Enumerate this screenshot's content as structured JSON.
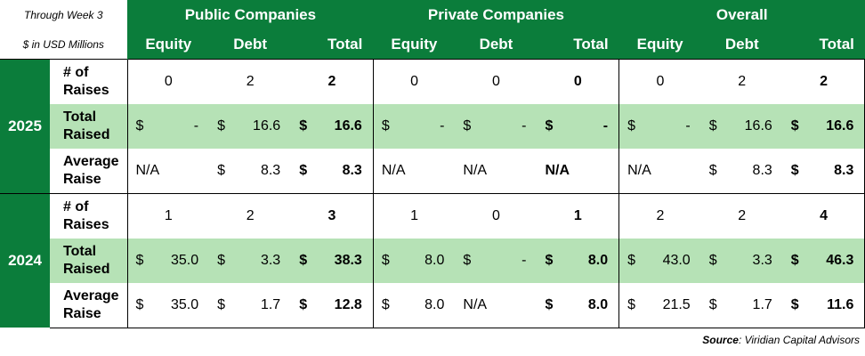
{
  "header": {
    "note_period": "Through Week 3",
    "note_units": "$ in USD Millions",
    "groups": [
      "Public Companies",
      "Private Companies",
      "Overall"
    ],
    "columns": [
      "Equity",
      "Debt",
      "Total",
      "Equity",
      "Debt",
      "Total",
      "Equity",
      "Debt",
      "Total"
    ]
  },
  "sections": [
    {
      "year": "2025",
      "rows": [
        {
          "label": "# of Raises",
          "cells": [
            [
              "0"
            ],
            [
              "2"
            ],
            [
              "2"
            ],
            [
              "0"
            ],
            [
              "0"
            ],
            [
              "0"
            ],
            [
              "0"
            ],
            [
              "2"
            ],
            [
              "2"
            ]
          ]
        },
        {
          "label": "Total Raised",
          "cells": [
            [
              "$",
              "-"
            ],
            [
              "$",
              "16.6"
            ],
            [
              "$",
              "16.6"
            ],
            [
              "$",
              "-"
            ],
            [
              "$",
              "-"
            ],
            [
              "$",
              "-"
            ],
            [
              "$",
              "-"
            ],
            [
              "$",
              "16.6"
            ],
            [
              "$",
              "16.6"
            ]
          ]
        },
        {
          "label": "Average Raise",
          "cells": [
            [
              "N/A"
            ],
            [
              "$",
              "8.3"
            ],
            [
              "$",
              "8.3"
            ],
            [
              "N/A"
            ],
            [
              "N/A"
            ],
            [
              "N/A"
            ],
            [
              "N/A"
            ],
            [
              "$",
              "8.3"
            ],
            [
              "$",
              "8.3"
            ]
          ]
        }
      ]
    },
    {
      "year": "2024",
      "rows": [
        {
          "label": "# of Raises",
          "cells": [
            [
              "1"
            ],
            [
              "2"
            ],
            [
              "3"
            ],
            [
              "1"
            ],
            [
              "0"
            ],
            [
              "1"
            ],
            [
              "2"
            ],
            [
              "2"
            ],
            [
              "4"
            ]
          ]
        },
        {
          "label": "Total Raised",
          "cells": [
            [
              "$",
              "35.0"
            ],
            [
              "$",
              "3.3"
            ],
            [
              "$",
              "38.3"
            ],
            [
              "$",
              "8.0"
            ],
            [
              "$",
              "-"
            ],
            [
              "$",
              "8.0"
            ],
            [
              "$",
              "43.0"
            ],
            [
              "$",
              "3.3"
            ],
            [
              "$",
              "46.3"
            ]
          ]
        },
        {
          "label": "Average Raise",
          "cells": [
            [
              "$",
              "35.0"
            ],
            [
              "$",
              "1.7"
            ],
            [
              "$",
              "12.8"
            ],
            [
              "$",
              "8.0"
            ],
            [
              "N/A"
            ],
            [
              "$",
              "8.0"
            ],
            [
              "$",
              "21.5"
            ],
            [
              "$",
              "1.7"
            ],
            [
              "$",
              "11.6"
            ]
          ]
        }
      ]
    }
  ],
  "footer": {
    "source_label": "Source",
    "source_text": ": Viridian Capital Advisors"
  }
}
